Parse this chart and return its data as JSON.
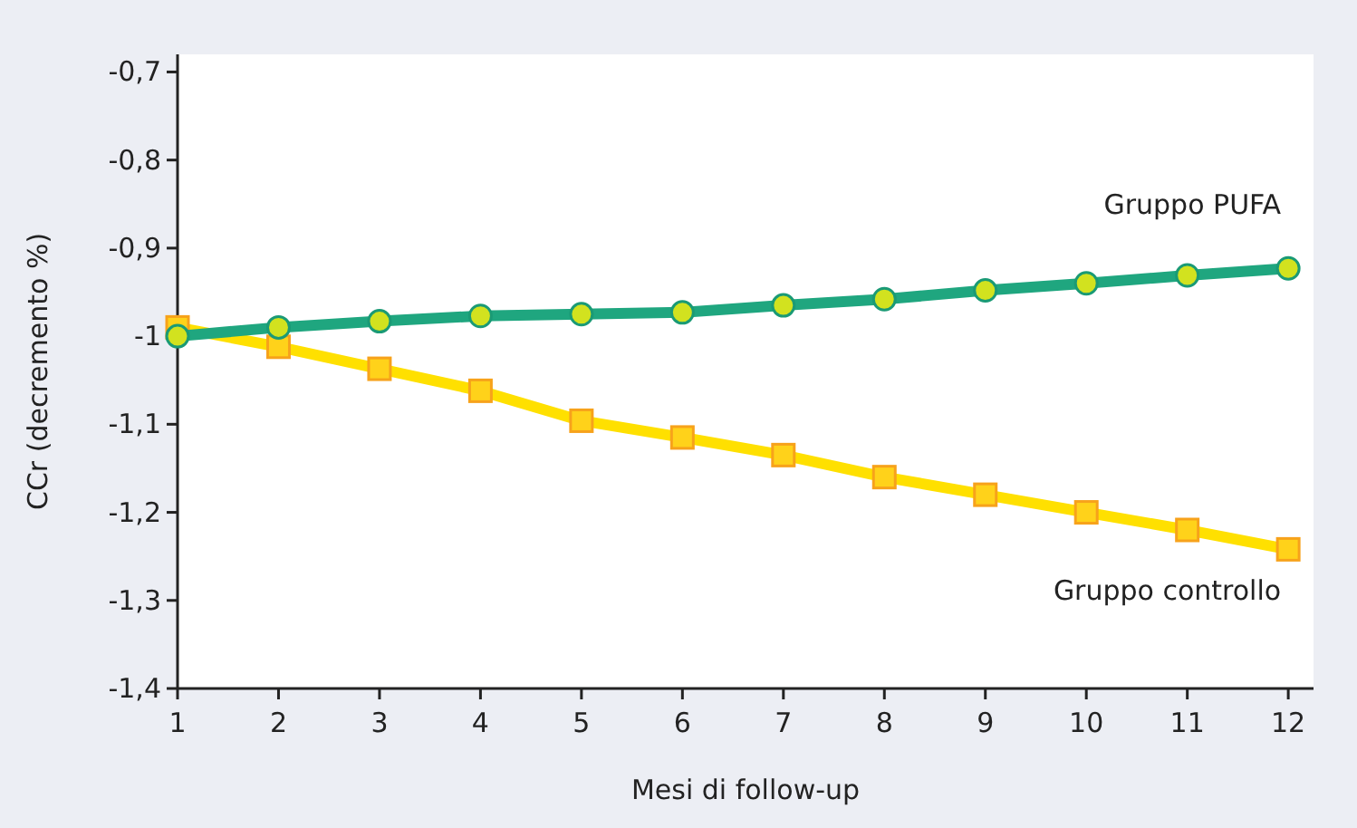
{
  "chart_data": {
    "type": "line",
    "xlabel": "Mesi di follow-up",
    "ylabel": "CCr (decremento %)",
    "x": [
      1,
      2,
      3,
      4,
      5,
      6,
      7,
      8,
      9,
      10,
      11,
      12
    ],
    "xlim": [
      1,
      12.25
    ],
    "xticks": [
      1,
      2,
      3,
      4,
      5,
      6,
      7,
      8,
      9,
      10,
      11,
      12
    ],
    "ylim": [
      -1.4,
      -0.68
    ],
    "yticks": [
      {
        "value": -1.4,
        "label": "-1,4"
      },
      {
        "value": -1.3,
        "label": "-1,3"
      },
      {
        "value": -1.2,
        "label": "-1,2"
      },
      {
        "value": -1.1,
        "label": "-1,1"
      },
      {
        "value": -1.0,
        "label": "-1"
      },
      {
        "value": -0.9,
        "label": "-0,9"
      },
      {
        "value": -0.8,
        "label": "-0,8"
      },
      {
        "value": -0.7,
        "label": "-0,7"
      }
    ],
    "grid": false,
    "legend": false,
    "line_style": "solid",
    "series": [
      {
        "name": "Gruppo PUFA",
        "color": "#1fa67f",
        "marker": "circle",
        "values": [
          -1.0,
          -0.99,
          -0.983,
          -0.977,
          -0.975,
          -0.973,
          -0.965,
          -0.958,
          -0.948,
          -0.94,
          -0.931,
          -0.923
        ]
      },
      {
        "name": "Gruppo controllo",
        "color": "#ffe000",
        "marker": "square",
        "values": [
          -0.99,
          -1.012,
          -1.037,
          -1.062,
          -1.096,
          -1.115,
          -1.135,
          -1.16,
          -1.18,
          -1.2,
          -1.22,
          -1.242
        ]
      }
    ]
  }
}
